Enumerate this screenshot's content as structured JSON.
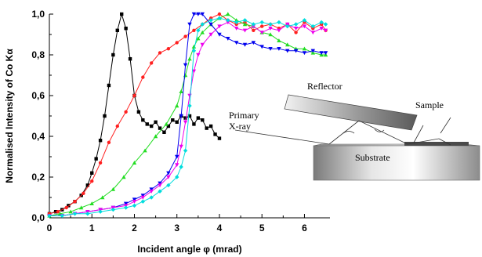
{
  "chart_data": {
    "type": "line",
    "title": "",
    "xlabel": "Incident angle φ (mrad)",
    "ylabel": "Normalised Intensity of Co Kα",
    "xlim": [
      0,
      6.6
    ],
    "ylim": [
      0,
      1.0
    ],
    "x_ticks": [
      "0",
      "1",
      "2",
      "3",
      "4",
      "5",
      "6"
    ],
    "y_ticks": [
      "0,0",
      "0,2",
      "0,4",
      "0,6",
      "0,8",
      "1,0"
    ],
    "grid": false,
    "legend": "none",
    "series": [
      {
        "color": "#000000",
        "marker": "square",
        "x": [
          0,
          0.15,
          0.3,
          0.45,
          0.6,
          0.75,
          0.9,
          1.0,
          1.1,
          1.2,
          1.3,
          1.4,
          1.5,
          1.6,
          1.7,
          1.8,
          1.9,
          2.0,
          2.1,
          2.2,
          2.3,
          2.4,
          2.5,
          2.6,
          2.7,
          2.8,
          2.9,
          3.0,
          3.1,
          3.2,
          3.3,
          3.4,
          3.5,
          3.6,
          3.7,
          3.8,
          3.9,
          4.0
        ],
        "y": [
          0.02,
          0.03,
          0.04,
          0.06,
          0.08,
          0.11,
          0.16,
          0.22,
          0.29,
          0.38,
          0.5,
          0.65,
          0.8,
          0.92,
          1.0,
          0.93,
          0.78,
          0.6,
          0.52,
          0.48,
          0.46,
          0.45,
          0.47,
          0.44,
          0.42,
          0.45,
          0.48,
          0.47,
          0.5,
          0.49,
          0.5,
          0.46,
          0.49,
          0.48,
          0.44,
          0.45,
          0.41,
          0.39
        ]
      },
      {
        "color": "#ff2020",
        "marker": "circle",
        "x": [
          0,
          0.2,
          0.4,
          0.6,
          0.8,
          1.0,
          1.2,
          1.4,
          1.6,
          1.8,
          2.0,
          2.2,
          2.4,
          2.6,
          2.8,
          3.0,
          3.2,
          3.4,
          3.6,
          3.8,
          4.0,
          4.2,
          4.4,
          4.6,
          4.8,
          5.0,
          5.2,
          5.4,
          5.6,
          5.8,
          6.0,
          6.2,
          6.4,
          6.5
        ],
        "y": [
          0.02,
          0.03,
          0.05,
          0.08,
          0.12,
          0.18,
          0.27,
          0.37,
          0.45,
          0.52,
          0.6,
          0.69,
          0.76,
          0.81,
          0.83,
          0.86,
          0.89,
          0.92,
          0.95,
          0.98,
          1.0,
          0.97,
          0.95,
          0.96,
          0.92,
          0.94,
          0.95,
          0.93,
          0.95,
          0.91,
          0.96,
          0.93,
          0.95,
          0.92
        ]
      },
      {
        "color": "#22dd22",
        "marker": "triangle",
        "x": [
          0,
          0.25,
          0.5,
          0.75,
          1.0,
          1.25,
          1.5,
          1.75,
          2.0,
          2.25,
          2.5,
          2.75,
          3.0,
          3.1,
          3.2,
          3.3,
          3.4,
          3.5,
          3.6,
          3.8,
          4.0,
          4.2,
          4.4,
          4.6,
          4.8,
          5.0,
          5.2,
          5.4,
          5.6,
          5.8,
          6.0,
          6.2,
          6.4,
          6.5
        ],
        "y": [
          0.01,
          0.02,
          0.03,
          0.05,
          0.07,
          0.1,
          0.14,
          0.2,
          0.27,
          0.33,
          0.4,
          0.46,
          0.55,
          0.62,
          0.7,
          0.78,
          0.84,
          0.88,
          0.91,
          0.95,
          0.98,
          1.0,
          0.97,
          0.95,
          0.94,
          0.91,
          0.9,
          0.87,
          0.85,
          0.83,
          0.83,
          0.81,
          0.8,
          0.8
        ]
      },
      {
        "color": "#0000ee",
        "marker": "triangle-down",
        "x": [
          0,
          0.3,
          0.6,
          0.9,
          1.2,
          1.5,
          1.8,
          2.0,
          2.2,
          2.4,
          2.6,
          2.8,
          3.0,
          3.1,
          3.2,
          3.3,
          3.4,
          3.5,
          3.6,
          3.8,
          4.0,
          4.2,
          4.4,
          4.6,
          4.8,
          5.0,
          5.2,
          5.4,
          5.6,
          5.8,
          6.0,
          6.2,
          6.4,
          6.5
        ],
        "y": [
          0.01,
          0.01,
          0.02,
          0.03,
          0.04,
          0.05,
          0.07,
          0.09,
          0.11,
          0.14,
          0.17,
          0.22,
          0.3,
          0.5,
          0.75,
          0.95,
          1.0,
          1.0,
          1.0,
          0.95,
          0.9,
          0.88,
          0.86,
          0.85,
          0.86,
          0.84,
          0.83,
          0.83,
          0.82,
          0.82,
          0.81,
          0.82,
          0.81,
          0.81
        ]
      },
      {
        "color": "#ee00ee",
        "marker": "triangle-down",
        "x": [
          0,
          0.3,
          0.6,
          0.9,
          1.2,
          1.5,
          1.8,
          2.0,
          2.2,
          2.4,
          2.6,
          2.8,
          3.0,
          3.1,
          3.2,
          3.3,
          3.4,
          3.5,
          3.6,
          3.8,
          4.0,
          4.2,
          4.4,
          4.6,
          4.8,
          5.0,
          5.2,
          5.4,
          5.6,
          5.8,
          6.0,
          6.2,
          6.4,
          6.5
        ],
        "y": [
          0.01,
          0.01,
          0.02,
          0.03,
          0.04,
          0.05,
          0.06,
          0.08,
          0.1,
          0.13,
          0.16,
          0.2,
          0.26,
          0.35,
          0.47,
          0.6,
          0.72,
          0.8,
          0.85,
          0.9,
          0.94,
          0.96,
          0.93,
          0.92,
          0.94,
          0.91,
          0.93,
          0.92,
          0.95,
          0.93,
          0.94,
          0.91,
          0.93,
          0.92
        ]
      },
      {
        "color": "#00dddd",
        "marker": "diamond",
        "x": [
          0,
          0.3,
          0.6,
          0.9,
          1.2,
          1.5,
          1.8,
          2.0,
          2.2,
          2.4,
          2.6,
          2.8,
          3.0,
          3.1,
          3.2,
          3.3,
          3.4,
          3.5,
          3.6,
          3.8,
          4.0,
          4.2,
          4.4,
          4.6,
          4.8,
          5.0,
          5.2,
          5.4,
          5.6,
          5.8,
          6.0,
          6.2,
          6.4,
          6.5
        ],
        "y": [
          0.01,
          0.01,
          0.02,
          0.02,
          0.03,
          0.04,
          0.05,
          0.06,
          0.08,
          0.1,
          0.13,
          0.16,
          0.2,
          0.25,
          0.33,
          0.55,
          0.82,
          0.92,
          0.95,
          0.97,
          0.98,
          0.97,
          0.96,
          0.97,
          0.95,
          0.96,
          0.95,
          0.96,
          0.94,
          0.95,
          0.97,
          0.94,
          0.96,
          0.95
        ]
      }
    ]
  },
  "inset": {
    "reflector": "Reflector",
    "sample": "Sample",
    "primary_line1": "Primary",
    "primary_line2": "X-ray",
    "substrate": "Substrate"
  }
}
